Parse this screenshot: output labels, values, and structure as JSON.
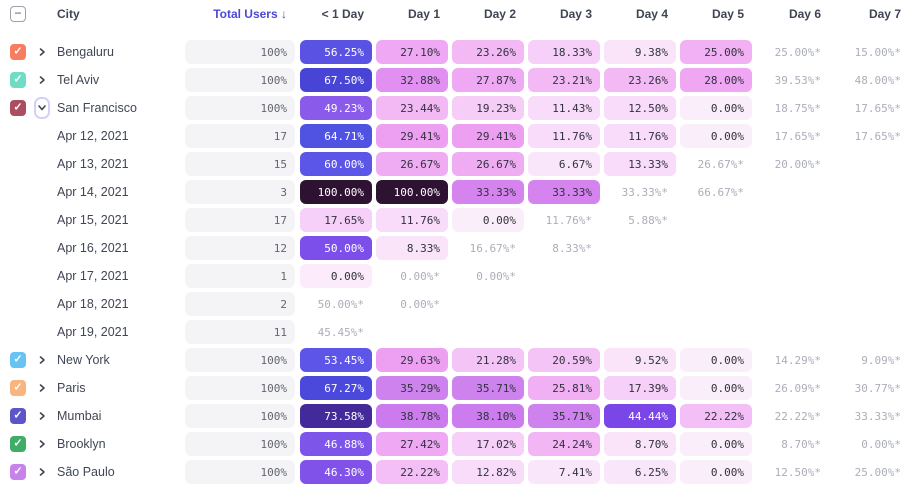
{
  "header": {
    "columns": [
      "City",
      "Total Users ↓",
      "< 1 Day",
      "Day 1",
      "Day 2",
      "Day 3",
      "Day 4",
      "Day 5",
      "Day 6",
      "Day 7"
    ],
    "select_all_state": "indeterminate"
  },
  "palette": {
    "sort_header_accent": "#4c49d4",
    "total_cell_bg": "#f4f4f6",
    "muted_text": "#abaeb9",
    "cell_text_dark": "#31323e",
    "cell_text_light": "#ffffff",
    "header_text": "#3e4553"
  },
  "rows": [
    {
      "type": "city",
      "name": "Bengaluru",
      "checkbox_color": "#f87c60",
      "expanded": false,
      "total": "100%",
      "cells": [
        {
          "v": "56.25%",
          "bg": "#5a52e2",
          "light": true
        },
        {
          "v": "27.10%",
          "bg": "#efa8f3"
        },
        {
          "v": "23.26%",
          "bg": "#f2b9f5"
        },
        {
          "v": "18.33%",
          "bg": "#f6d0f8"
        },
        {
          "v": "9.38%",
          "bg": "#fae4fa"
        },
        {
          "v": "25.00%",
          "bg": "#f1b1f4"
        },
        {
          "v": "25.00%*",
          "muted": true
        },
        {
          "v": "15.00%*",
          "muted": true
        }
      ]
    },
    {
      "type": "city",
      "name": "Tel Aviv",
      "checkbox_color": "#70dcc6",
      "expanded": false,
      "total": "100%",
      "cells": [
        {
          "v": "67.50%",
          "bg": "#4845d6",
          "light": true
        },
        {
          "v": "32.88%",
          "bg": "#e18ff0"
        },
        {
          "v": "27.87%",
          "bg": "#efa8f3"
        },
        {
          "v": "23.21%",
          "bg": "#f2b9f5"
        },
        {
          "v": "23.26%",
          "bg": "#f2b9f5"
        },
        {
          "v": "28.00%",
          "bg": "#efa6f3"
        },
        {
          "v": "39.53%*",
          "muted": true
        },
        {
          "v": "48.00%*",
          "muted": true
        }
      ]
    },
    {
      "type": "city",
      "name": "San Francisco",
      "checkbox_color": "#ad4d62",
      "expanded": true,
      "total": "100%",
      "cells": [
        {
          "v": "49.23%",
          "bg": "#8a5beb",
          "light": true
        },
        {
          "v": "23.44%",
          "bg": "#f2b9f5"
        },
        {
          "v": "19.23%",
          "bg": "#f5cdf7"
        },
        {
          "v": "11.43%",
          "bg": "#f8dcf9"
        },
        {
          "v": "12.50%",
          "bg": "#f8dcf9"
        },
        {
          "v": "0.00%",
          "bg": "#fbeefb"
        },
        {
          "v": "18.75%*",
          "muted": true
        },
        {
          "v": "17.65%*",
          "muted": true
        }
      ]
    },
    {
      "type": "date",
      "name": "Apr 12, 2021",
      "total": "17",
      "cells": [
        {
          "v": "64.71%",
          "bg": "#5053e2",
          "light": true
        },
        {
          "v": "29.41%",
          "bg": "#eda0f2"
        },
        {
          "v": "29.41%",
          "bg": "#eda0f2"
        },
        {
          "v": "11.76%",
          "bg": "#f8dcf9"
        },
        {
          "v": "11.76%",
          "bg": "#f8dcf9"
        },
        {
          "v": "0.00%",
          "bg": "#fbeefb"
        },
        {
          "v": "17.65%*",
          "muted": true
        },
        {
          "v": "17.65%*",
          "muted": true
        }
      ]
    },
    {
      "type": "date",
      "name": "Apr 13, 2021",
      "total": "15",
      "cells": [
        {
          "v": "60.00%",
          "bg": "#5b55e8",
          "light": true
        },
        {
          "v": "26.67%",
          "bg": "#f0acf3"
        },
        {
          "v": "26.67%",
          "bg": "#f0acf3"
        },
        {
          "v": "6.67%",
          "bg": "#fae6fa"
        },
        {
          "v": "13.33%",
          "bg": "#f8dcf9"
        },
        {
          "v": "26.67%*",
          "muted": true
        },
        {
          "v": "20.00%*",
          "muted": true
        },
        null
      ]
    },
    {
      "type": "date",
      "name": "Apr 14, 2021",
      "total": "3",
      "cells": [
        {
          "v": "100.00%",
          "bg": "#2e1232",
          "light": true
        },
        {
          "v": "100.00%",
          "bg": "#2e1232",
          "light": true
        },
        {
          "v": "33.33%",
          "bg": "#d583ee"
        },
        {
          "v": "33.33%",
          "bg": "#d583ee"
        },
        {
          "v": "33.33%*",
          "muted": true
        },
        {
          "v": "66.67%*",
          "muted": true
        },
        null,
        null
      ]
    },
    {
      "type": "date",
      "name": "Apr 15, 2021",
      "total": "17",
      "cells": [
        {
          "v": "17.65%",
          "bg": "#f6d0f8"
        },
        {
          "v": "11.76%",
          "bg": "#f8dcf9"
        },
        {
          "v": "0.00%",
          "bg": "#fbeefb"
        },
        {
          "v": "11.76%*",
          "muted": true
        },
        {
          "v": "5.88%*",
          "muted": true
        },
        null,
        null,
        null
      ]
    },
    {
      "type": "date",
      "name": "Apr 16, 2021",
      "total": "12",
      "cells": [
        {
          "v": "50.00%",
          "bg": "#7c4feb",
          "light": true
        },
        {
          "v": "8.33%",
          "bg": "#fae4fa"
        },
        {
          "v": "16.67%*",
          "muted": true
        },
        {
          "v": "8.33%*",
          "muted": true
        },
        null,
        null,
        null,
        null
      ]
    },
    {
      "type": "date",
      "name": "Apr 17, 2021",
      "total": "1",
      "cells": [
        {
          "v": "0.00%",
          "bg": "#fbebfb"
        },
        {
          "v": "0.00%*",
          "muted": true
        },
        {
          "v": "0.00%*",
          "muted": true
        },
        null,
        null,
        null,
        null,
        null
      ]
    },
    {
      "type": "date",
      "name": "Apr 18, 2021",
      "total": "2",
      "cells": [
        {
          "v": "50.00%*",
          "muted": true
        },
        {
          "v": "0.00%*",
          "muted": true
        },
        null,
        null,
        null,
        null,
        null,
        null
      ]
    },
    {
      "type": "date",
      "name": "Apr 19, 2021",
      "total": "11",
      "cells": [
        {
          "v": "45.45%*",
          "muted": true
        },
        null,
        null,
        null,
        null,
        null,
        null,
        null
      ]
    },
    {
      "type": "city",
      "name": "New York",
      "checkbox_color": "#66c3f2",
      "expanded": false,
      "total": "100%",
      "cells": [
        {
          "v": "53.45%",
          "bg": "#5c55e8",
          "light": true
        },
        {
          "v": "29.63%",
          "bg": "#eda0f2"
        },
        {
          "v": "21.28%",
          "bg": "#f4c4f6"
        },
        {
          "v": "20.59%",
          "bg": "#f4c4f6"
        },
        {
          "v": "9.52%",
          "bg": "#fae4fa"
        },
        {
          "v": "0.00%",
          "bg": "#fbeefb"
        },
        {
          "v": "14.29%*",
          "muted": true
        },
        {
          "v": "9.09%*",
          "muted": true
        }
      ]
    },
    {
      "type": "city",
      "name": "Paris",
      "checkbox_color": "#f9b57f",
      "expanded": false,
      "total": "100%",
      "cells": [
        {
          "v": "67.27%",
          "bg": "#4a49db",
          "light": true
        },
        {
          "v": "35.29%",
          "bg": "#ce82ee"
        },
        {
          "v": "35.71%",
          "bg": "#ce82ee"
        },
        {
          "v": "25.81%",
          "bg": "#f1aff4"
        },
        {
          "v": "17.39%",
          "bg": "#f6d0f8"
        },
        {
          "v": "0.00%",
          "bg": "#fbeefb"
        },
        {
          "v": "26.09%*",
          "muted": true
        },
        {
          "v": "30.77%*",
          "muted": true
        }
      ]
    },
    {
      "type": "city",
      "name": "Mumbai",
      "checkbox_color": "#5d54c8",
      "expanded": false,
      "total": "100%",
      "cells": [
        {
          "v": "73.58%",
          "bg": "#43299a",
          "light": true
        },
        {
          "v": "38.78%",
          "bg": "#cb7bee"
        },
        {
          "v": "38.10%",
          "bg": "#cc7cee"
        },
        {
          "v": "35.71%",
          "bg": "#ce82ee"
        },
        {
          "v": "44.44%",
          "bg": "#7a46e8",
          "light": true
        },
        {
          "v": "22.22%",
          "bg": "#f3bff6"
        },
        {
          "v": "22.22%*",
          "muted": true
        },
        {
          "v": "33.33%*",
          "muted": true
        }
      ]
    },
    {
      "type": "city",
      "name": "Brooklyn",
      "checkbox_color": "#3fad68",
      "expanded": false,
      "total": "100%",
      "cells": [
        {
          "v": "46.88%",
          "bg": "#7e55eb",
          "light": true
        },
        {
          "v": "27.42%",
          "bg": "#efa8f3"
        },
        {
          "v": "17.02%",
          "bg": "#f6d0f8"
        },
        {
          "v": "24.24%",
          "bg": "#f2b6f5"
        },
        {
          "v": "8.70%",
          "bg": "#fae4fa"
        },
        {
          "v": "0.00%",
          "bg": "#fbeefb"
        },
        {
          "v": "8.70%*",
          "muted": true
        },
        {
          "v": "0.00%*",
          "muted": true
        }
      ]
    },
    {
      "type": "city",
      "name": "São Paulo",
      "checkbox_color": "#c683e9",
      "expanded": false,
      "total": "100%",
      "cells": [
        {
          "v": "46.30%",
          "bg": "#8052ea",
          "light": true
        },
        {
          "v": "22.22%",
          "bg": "#f3bff6"
        },
        {
          "v": "12.82%",
          "bg": "#f8dcf9"
        },
        {
          "v": "7.41%",
          "bg": "#fae6fa"
        },
        {
          "v": "6.25%",
          "bg": "#fae6fa"
        },
        {
          "v": "0.00%",
          "bg": "#fbeefb"
        },
        {
          "v": "12.50%*",
          "muted": true
        },
        {
          "v": "25.00%*",
          "muted": true
        }
      ]
    }
  ]
}
